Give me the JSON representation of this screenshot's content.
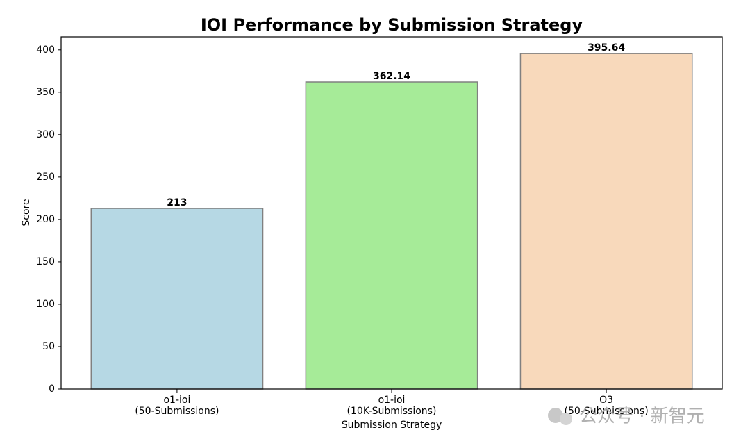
{
  "chart_data": {
    "type": "bar",
    "title": "IOI Performance by Submission Strategy",
    "x_label": "Submission Strategy",
    "y_label": "Score",
    "categories": [
      [
        "o1-ioi",
        "(50-Submissions)"
      ],
      [
        "o1-ioi",
        "(10K-Submissions)"
      ],
      [
        "O3",
        "(50-Submissions)"
      ]
    ],
    "values": [
      213,
      362.14,
      395.64
    ],
    "colors": [
      "#b6d8e4",
      "#a6eb98",
      "#f8d9bb"
    ],
    "edge_color": "#808080",
    "ylim": [
      0,
      415.4
    ],
    "yticks": [
      0,
      50,
      100,
      150,
      200,
      250,
      300,
      350,
      400
    ],
    "grid": false,
    "watermark": "公众号 · 新智元"
  }
}
